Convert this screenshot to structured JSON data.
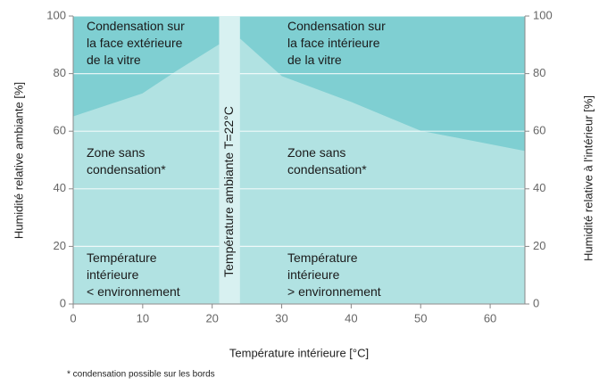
{
  "chart_data": {
    "type": "area",
    "xlabel": "Température intérieure [°C]",
    "ylabel": "Humidité relative ambiante [%]",
    "y2label": "Humidité relative à l'intérieur [%]",
    "xlim": [
      0,
      65
    ],
    "xticks": [
      0,
      10,
      20,
      30,
      40,
      50,
      60
    ],
    "ylim": [
      0,
      100
    ],
    "yticks": [
      0,
      20,
      40,
      60,
      80,
      100
    ],
    "y2lim": [
      0,
      100
    ],
    "y2ticks": [
      0,
      20,
      40,
      60,
      80,
      100
    ],
    "grid": true,
    "color": "#b1e2e2",
    "background": "#7fcfd2",
    "band_color": "#d8f1f1",
    "band": [
      21,
      24
    ],
    "band_label": "Température ambiante T=22°C",
    "series": [
      {
        "x": [
          0,
          10,
          15,
          21
        ],
        "values": [
          65,
          73,
          81,
          90
        ]
      },
      {
        "x": [
          24,
          30,
          40,
          50,
          65
        ],
        "values": [
          92,
          79,
          70,
          60,
          53
        ]
      }
    ],
    "annotations": [
      [
        "Condensation sur",
        "la face extérieure",
        "de la vitre"
      ],
      [
        "Condensation sur",
        "la face intérieure",
        "de la vitre"
      ],
      [
        "Zone sans",
        "condensation*"
      ],
      [
        "Zone sans",
        "condensation*"
      ],
      [
        "Température",
        "intérieure",
        "< environnement"
      ],
      [
        "Température",
        "intérieure",
        "> environnement"
      ]
    ],
    "footnote": "* condensation possible sur les bords"
  }
}
